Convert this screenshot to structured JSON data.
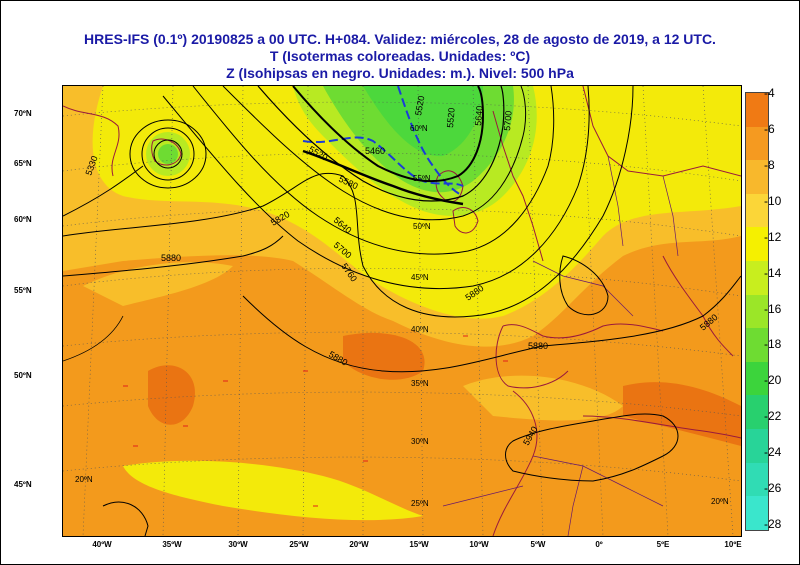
{
  "header": {
    "line1": "HRES-IFS (0.1º) 20190825 a 00 UTC.  H+084. Validez: miércoles, 28 de agosto de 2019,  a  12 UTC.",
    "line2": "T (Isotermas coloreadas. Unidades: ºC)",
    "line3": "Z (Isohipsas en negro. Unidades: m.).  Nivel: 500 hPa"
  },
  "lat_labels": [
    "70ºN",
    "65ºN",
    "60ºN",
    "55ºN",
    "50ºN",
    "45ºN"
  ],
  "lon_labels": [
    "40ºW",
    "35ºW",
    "30ºW",
    "25ºW",
    "20ºW",
    "15ºW",
    "10ºW",
    "5ºW",
    "0º",
    "5ºE",
    "10ºE"
  ],
  "inner_lat_labels": [
    "60ºN",
    "55ºN",
    "50ºN",
    "45ºN",
    "40ºN",
    "35ºN",
    "30ºN",
    "25ºN",
    "20ºN",
    "20ºN"
  ],
  "isohypse_labels": [
    "5330",
    "5520",
    "5520",
    "5580",
    "5640",
    "5700",
    "5760",
    "5880",
    "5880",
    "5880",
    "5880",
    "5940",
    "5460",
    "5520",
    "5640",
    "5700",
    "5820",
    "5880"
  ],
  "colorbar": {
    "labels": [
      "-4",
      "-6",
      "-8",
      "-10",
      "-12",
      "-14",
      "-16",
      "-18",
      "-20",
      "-22",
      "-24",
      "-26",
      "-28"
    ],
    "colors": [
      "#f07a14",
      "#f59a20",
      "#f8b82c",
      "#fbd638",
      "#f5f000",
      "#c8ee1e",
      "#9be628",
      "#6edc32",
      "#3cd43c",
      "#28d06e",
      "#28d498",
      "#30dcb4",
      "#3ae6cc"
    ]
  },
  "map": {
    "palette": {
      "sea_orange": "#f39a1c",
      "dark_orange": "#ea7412",
      "yellow_orange": "#f8be2a",
      "yellow": "#f3ea0a",
      "light_green": "#b8ea22",
      "green": "#4cd83c",
      "blue_isotherm": "#1a3cd8",
      "coast": "#9a1a3c",
      "outside": "#fce0c0"
    }
  }
}
